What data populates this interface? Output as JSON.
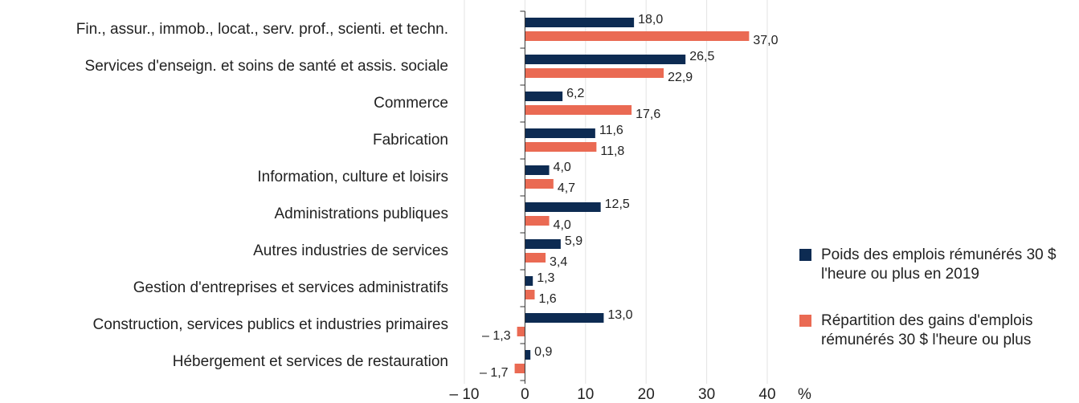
{
  "chart_data": {
    "type": "bar",
    "orientation": "horizontal",
    "categories": [
      "Fin., assur., immob., locat., serv. prof., scienti. et techn.",
      "Services d'enseign. et soins de santé et assis. sociale",
      "Commerce",
      "Fabrication",
      "Information, culture et loisirs",
      "Administrations publiques",
      "Autres industries de services",
      "Gestion d'entreprises et services administratifs",
      "Construction, services publics et industries primaires",
      "Hébergement et services de restauration"
    ],
    "series": [
      {
        "name": "Poids des emplois rémunérés 30 $ l'heure ou plus en 2019",
        "color": "#0d2b52",
        "values": [
          18.0,
          26.5,
          6.2,
          11.6,
          4.0,
          12.5,
          5.9,
          1.3,
          13.0,
          0.9
        ],
        "value_labels": [
          "18,0",
          "26,5",
          "6,2",
          "11,6",
          "4,0",
          "12,5",
          "5,9",
          "1,3",
          "13,0",
          "0,9"
        ]
      },
      {
        "name": "Répartition des gains d'emplois rémunérés 30 $ l'heure ou plus",
        "color": "#ea6a53",
        "values": [
          37.0,
          22.9,
          17.6,
          11.8,
          4.7,
          4.0,
          3.4,
          1.6,
          -1.3,
          -1.7
        ],
        "value_labels": [
          "37,0",
          "22,9",
          "17,6",
          "11,8",
          "4,7",
          "4,0",
          "3,4",
          "1,6",
          "– 1,3",
          "– 1,7"
        ]
      }
    ],
    "xlabel": "%",
    "xlim": [
      -10,
      40
    ],
    "xticks": [
      {
        "value": -10,
        "label": "– 10"
      },
      0,
      10,
      20,
      30,
      40
    ],
    "grid": true
  }
}
